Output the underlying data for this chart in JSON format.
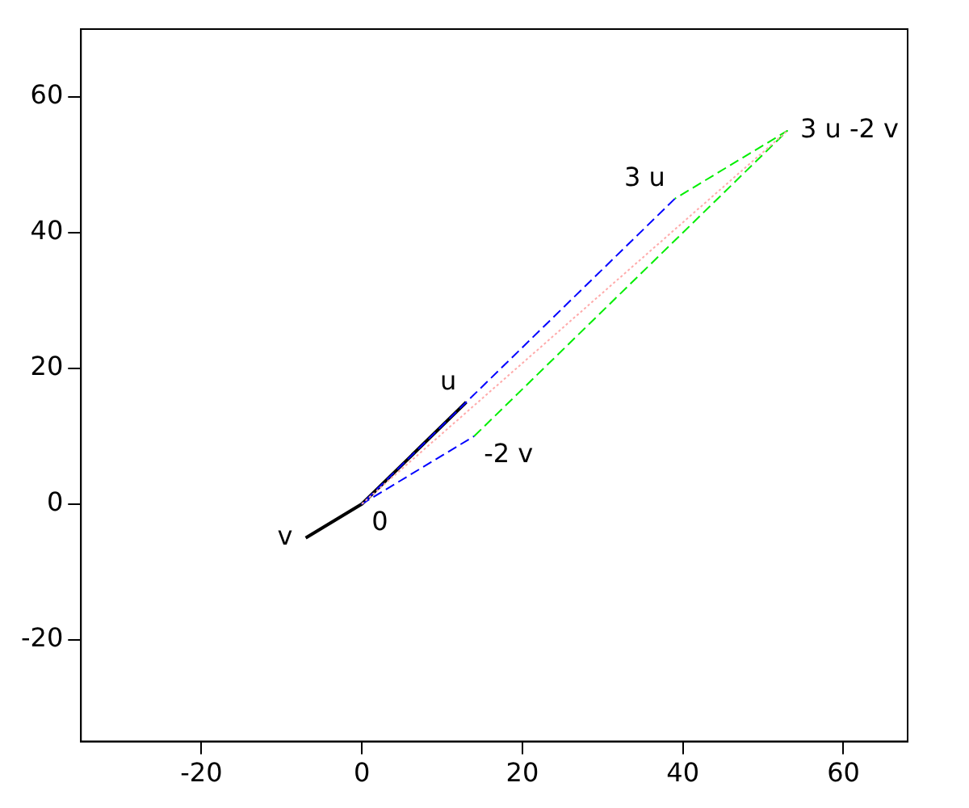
{
  "chart_data": {
    "type": "line",
    "xlim": [
      -35,
      68
    ],
    "ylim": [
      -35,
      70
    ],
    "xticks": [
      -20,
      0,
      20,
      40,
      60
    ],
    "yticks": [
      -20,
      0,
      20,
      40,
      60
    ],
    "grid": false,
    "legend": false,
    "marker": "none",
    "series": [
      {
        "color": "#000000",
        "line_style": "solid",
        "x": [
          -7,
          0,
          13
        ],
        "values": [
          -5,
          0,
          15
        ]
      },
      {
        "color": "#0000ff",
        "line_style": "dashed",
        "x": [
          39,
          0,
          14
        ],
        "values": [
          45,
          0,
          10
        ]
      },
      {
        "color": "#00ee00",
        "line_style": "dashed",
        "x": [
          14,
          53,
          39
        ],
        "values": [
          10,
          55,
          45
        ]
      },
      {
        "color": "#ffaaaa",
        "line_style": "dotted",
        "x": [
          0,
          53
        ],
        "values": [
          0,
          55
        ]
      }
    ],
    "annotations": [
      {
        "text": "0",
        "x": 0,
        "y": 0
      },
      {
        "text": "u",
        "x": 13,
        "y": 15
      },
      {
        "text": "v",
        "x": -7,
        "y": -5
      },
      {
        "text": "-2 v",
        "x": 14,
        "y": 10
      },
      {
        "text": "3 u",
        "x": 39,
        "y": 45
      },
      {
        "text": "3 u -2 v",
        "x": 53,
        "y": 55
      }
    ]
  }
}
